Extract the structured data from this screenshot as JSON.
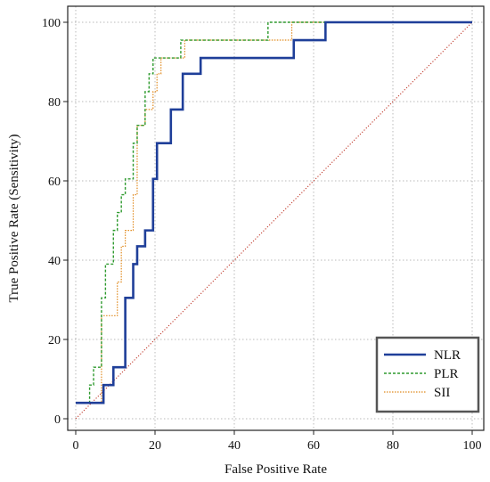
{
  "chart_data": {
    "type": "line",
    "title": "",
    "xlabel": "False Positive Rate",
    "ylabel": "True Positive Rate (Sensitivity)",
    "xlim": [
      0,
      100
    ],
    "ylim": [
      0,
      100
    ],
    "x_ticks": [
      "0",
      "20",
      "40",
      "60",
      "80",
      "100"
    ],
    "y_ticks": [
      "0",
      "20",
      "40",
      "60",
      "80",
      "100"
    ],
    "grid": true,
    "legend_position": "bottom-right",
    "series": [
      {
        "name": "NLR",
        "color": "#1f3f99",
        "style": "solid",
        "x": [
          0,
          7,
          7,
          9.5,
          9.5,
          12.5,
          12.5,
          14.5,
          14.5,
          15.5,
          15.5,
          17.5,
          17.5,
          19.5,
          19.5,
          20.5,
          20.5,
          24,
          24,
          27,
          27,
          31.5,
          31.5,
          55,
          55,
          63,
          63,
          100
        ],
        "y": [
          4,
          4,
          8.5,
          8.5,
          13,
          13,
          30.5,
          30.5,
          39,
          39,
          43.5,
          43.5,
          47.5,
          47.5,
          60.5,
          60.5,
          69.5,
          69.5,
          78,
          78,
          87,
          87,
          91,
          91,
          95.5,
          95.5,
          100,
          100
        ]
      },
      {
        "name": "PLR",
        "color": "#2e9a2e",
        "style": "dashed",
        "x": [
          0,
          3.5,
          3.5,
          4.5,
          4.5,
          6.5,
          6.5,
          7.5,
          7.5,
          9.5,
          9.5,
          10.5,
          10.5,
          11.5,
          11.5,
          12.5,
          12.5,
          14.5,
          14.5,
          15.5,
          15.5,
          17.5,
          17.5,
          18.5,
          18.5,
          19.5,
          19.5,
          26.5,
          26.5,
          48.5,
          48.5,
          100
        ],
        "y": [
          4,
          4,
          8.5,
          8.5,
          13,
          13,
          30.5,
          30.5,
          39,
          39,
          47.5,
          47.5,
          52,
          52,
          56.5,
          56.5,
          60.5,
          60.5,
          69.5,
          69.5,
          74,
          74,
          82.5,
          82.5,
          87,
          87,
          91,
          91,
          95.5,
          95.5,
          100,
          100
        ]
      },
      {
        "name": "SII",
        "color": "#e08a1e",
        "style": "dotted",
        "x": [
          0,
          6.5,
          6.5,
          10.5,
          10.5,
          11.5,
          11.5,
          12.5,
          12.5,
          14.5,
          14.5,
          15.5,
          15.5,
          17.5,
          17.5,
          19.5,
          19.5,
          20.5,
          20.5,
          21.5,
          21.5,
          27.5,
          27.5,
          32.5,
          32.5,
          54.5,
          54.5,
          100
        ],
        "y": [
          4,
          4,
          26,
          26,
          34.5,
          34.5,
          43.5,
          43.5,
          47.5,
          47.5,
          56.5,
          56.5,
          74,
          74,
          78,
          78,
          82.5,
          82.5,
          87,
          87,
          91,
          91,
          95.5,
          95.5,
          95.5,
          95.5,
          100,
          100
        ]
      },
      {
        "name": "",
        "color": "#c0392b",
        "style": "diagonal-dotted",
        "x": [
          0,
          100
        ],
        "y": [
          0,
          100
        ]
      }
    ]
  }
}
